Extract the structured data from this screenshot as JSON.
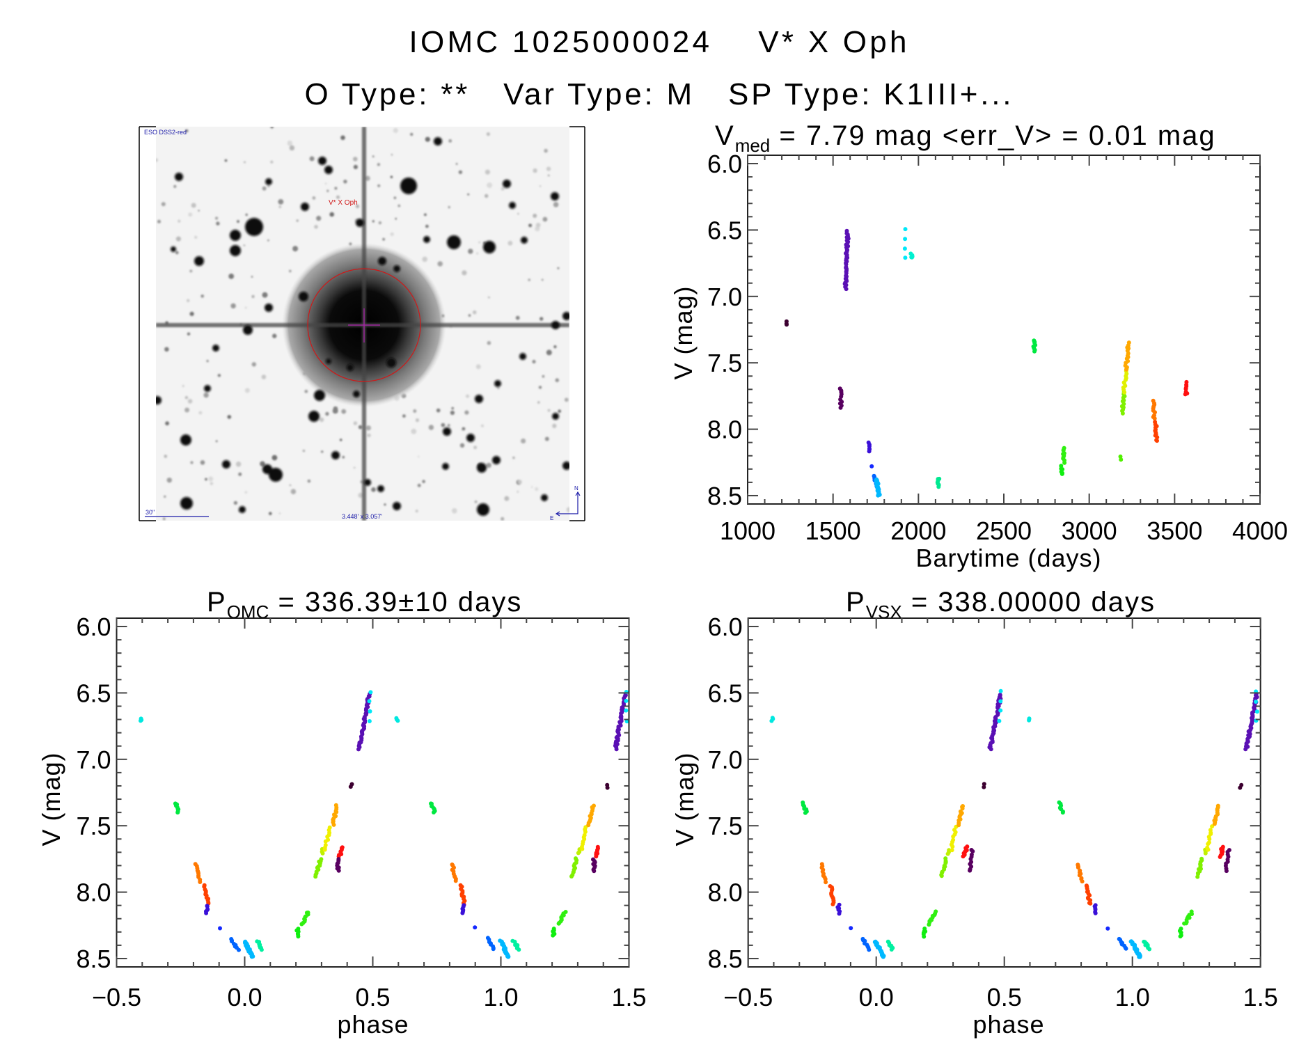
{
  "header": {
    "title_line1": "IOMC 1025000024    V* X Oph",
    "title_line2": "O Type: **   Var Type: M   SP Type: K1III+..."
  },
  "finder_image": {
    "survey_label": "ESO DSS2-red",
    "target_label": "V* X Oph",
    "scale_bar_label": "30\"",
    "field_size_label": "3.448' x 3.057'",
    "north_label": "N",
    "east_label": "E"
  },
  "chart_data": [
    {
      "type": "scatter",
      "title_main": "V",
      "title_sub": "med",
      "title_rest": " = 7.79 mag <err_V> = 0.01 mag",
      "xlabel": "Barytime (days)",
      "ylabel": "V (mag)",
      "xlim": [
        1000,
        4000
      ],
      "ylim": [
        5.937,
        8.563
      ],
      "y_inverted": true,
      "xticks": [
        "1000",
        "1500",
        "2000",
        "2500",
        "3000",
        "3500",
        "4000"
      ],
      "yticks": [
        "6.0",
        "6.5",
        "7.0",
        "7.5",
        "8.0",
        "8.5"
      ],
      "x_minor_step": 100,
      "y_minor_step": 0.1,
      "grid": false,
      "segments": [
        {
          "x": [
            1226,
            1226
          ],
          "mag": [
            7.19,
            7.21
          ],
          "color": "#3c0030",
          "n": 3
        },
        {
          "x": [
            1545,
            1547
          ],
          "mag": [
            7.69,
            7.84
          ],
          "color": "#580060",
          "n": 10
        },
        {
          "x": [
            1572,
            1586
          ],
          "mag": [
            6.94,
            6.51
          ],
          "color": "#5a10b4",
          "n": 40
        },
        {
          "x": [
            1924,
            1924
          ],
          "mag": [
            6.49,
            6.71
          ],
          "color": "#00e8f8",
          "n": 4
        },
        {
          "x": [
            1961,
            1961
          ],
          "mag": [
            6.68,
            6.71
          ],
          "color": "#00f0d0",
          "n": 5
        },
        {
          "x": [
            1711,
            1711
          ],
          "mag": [
            8.1,
            8.17
          ],
          "color": "#3a10d8",
          "n": 6
        },
        {
          "x": [
            1724,
            1724
          ],
          "mag": [
            8.28,
            8.28
          ],
          "color": "#1428ff",
          "n": 1
        },
        {
          "x": [
            1742,
            1756
          ],
          "mag": [
            8.35,
            8.43
          ],
          "color": "#0064ff",
          "n": 8
        },
        {
          "x": [
            1756,
            1769
          ],
          "mag": [
            8.38,
            8.5
          ],
          "color": "#00b8ff",
          "n": 30
        },
        {
          "x": [
            2116,
            2116
          ],
          "mag": [
            8.37,
            8.43
          ],
          "color": "#00e890",
          "n": 8
        },
        {
          "x": [
            2679,
            2679
          ],
          "mag": [
            7.33,
            7.41
          ],
          "color": "#00e840",
          "n": 8
        },
        {
          "x": [
            2839,
            2839
          ],
          "mag": [
            8.28,
            8.34
          ],
          "color": "#10ee10",
          "n": 6
        },
        {
          "x": [
            2851,
            2853
          ],
          "mag": [
            8.25,
            8.14
          ],
          "color": "#30f010",
          "n": 10
        },
        {
          "x": [
            3182,
            3182
          ],
          "mag": [
            8.21,
            8.23
          ],
          "color": "#50f000",
          "n": 2
        },
        {
          "x": [
            3195,
            3203
          ],
          "mag": [
            7.88,
            7.72
          ],
          "color": "#80f000",
          "n": 12
        },
        {
          "x": [
            3203,
            3215
          ],
          "mag": [
            7.72,
            7.55
          ],
          "color": "#e0f000",
          "n": 12
        },
        {
          "x": [
            3215,
            3231
          ],
          "mag": [
            7.55,
            7.35
          ],
          "color": "#ffa800",
          "n": 14
        },
        {
          "x": [
            3379,
            3381
          ],
          "mag": [
            7.79,
            7.92
          ],
          "color": "#ff7800",
          "n": 10
        },
        {
          "x": [
            3391,
            3393
          ],
          "mag": [
            7.95,
            8.09
          ],
          "color": "#ff4000",
          "n": 12
        },
        {
          "x": [
            3568,
            3569
          ],
          "mag": [
            7.74,
            7.65
          ],
          "color": "#ff1010",
          "n": 8
        }
      ]
    },
    {
      "type": "scatter",
      "title_main": "P",
      "title_sub": "OMC",
      "title_rest": " = 336.39±10 days",
      "xlabel": "phase",
      "ylabel": "V (mag)",
      "xlim": [
        -0.5,
        1.5
      ],
      "ylim": [
        5.937,
        8.563
      ],
      "y_inverted": true,
      "phase_repeat": true,
      "xticks": [
        "−0.5",
        "0.0",
        "0.5",
        "1.0",
        "1.5"
      ],
      "yticks": [
        "6.0",
        "6.5",
        "7.0",
        "7.5",
        "8.0",
        "8.5"
      ],
      "x_minor_step": 0.1,
      "y_minor_step": 0.1,
      "grid": false,
      "segments": [
        {
          "x": [
            -0.405,
            -0.405
          ],
          "mag": [
            6.69,
            6.71
          ],
          "color": "#00e8e0",
          "n": 3
        },
        {
          "x": [
            -0.27,
            -0.26
          ],
          "mag": [
            7.33,
            7.4
          ],
          "color": "#00e840",
          "n": 8
        },
        {
          "x": [
            -0.19,
            -0.177
          ],
          "mag": [
            7.79,
            7.92
          ],
          "color": "#ff7800",
          "n": 10
        },
        {
          "x": [
            -0.156,
            -0.142
          ],
          "mag": [
            7.95,
            8.09
          ],
          "color": "#ff4000",
          "n": 12
        },
        {
          "x": [
            -0.148,
            -0.148
          ],
          "mag": [
            8.1,
            8.16
          ],
          "color": "#3a10d8",
          "n": 6
        },
        {
          "x": [
            -0.1,
            -0.1
          ],
          "mag": [
            8.27,
            8.27
          ],
          "color": "#1428ff",
          "n": 1
        },
        {
          "x": [
            -0.054,
            -0.027
          ],
          "mag": [
            8.35,
            8.43
          ],
          "color": "#0064ff",
          "n": 8
        },
        {
          "x": [
            0.0,
            0.03
          ],
          "mag": [
            8.37,
            8.49
          ],
          "color": "#00b8ff",
          "n": 30
        },
        {
          "x": [
            0.05,
            0.07
          ],
          "mag": [
            8.37,
            8.43
          ],
          "color": "#00f0a0",
          "n": 8
        },
        {
          "x": [
            0.207,
            0.207
          ],
          "mag": [
            8.28,
            8.33
          ],
          "color": "#10ee10",
          "n": 6
        },
        {
          "x": [
            0.226,
            0.249
          ],
          "mag": [
            8.24,
            8.15
          ],
          "color": "#30f010",
          "n": 10
        },
        {
          "x": [
            0.278,
            0.296
          ],
          "mag": [
            7.88,
            7.75
          ],
          "color": "#80f000",
          "n": 12
        },
        {
          "x": [
            0.305,
            0.305
          ],
          "mag": [
            7.68,
            7.71
          ],
          "color": "#c0f000",
          "n": 3
        },
        {
          "x": [
            0.315,
            0.33
          ],
          "mag": [
            7.68,
            7.51
          ],
          "color": "#f0f000",
          "n": 10
        },
        {
          "x": [
            0.344,
            0.36
          ],
          "mag": [
            7.49,
            7.35
          ],
          "color": "#ffa800",
          "n": 12
        },
        {
          "x": [
            0.371,
            0.38
          ],
          "mag": [
            7.73,
            7.66
          ],
          "color": "#ff1010",
          "n": 8
        },
        {
          "x": [
            0.364,
            0.364
          ],
          "mag": [
            7.75,
            7.84
          ],
          "color": "#580060",
          "n": 8
        },
        {
          "x": [
            0.417,
            0.417
          ],
          "mag": [
            7.19,
            7.21
          ],
          "color": "#3c0030",
          "n": 2
        },
        {
          "x": [
            0.448,
            0.485
          ],
          "mag": [
            6.92,
            6.51
          ],
          "color": "#5a10b4",
          "n": 40
        },
        {
          "x": [
            0.489,
            0.489
          ],
          "mag": [
            6.49,
            6.71
          ],
          "color": "#00e8f8",
          "n": 4
        }
      ]
    },
    {
      "type": "scatter",
      "title_main": "P",
      "title_sub": "VSX",
      "title_rest": " = 338.00000 days",
      "xlabel": "phase",
      "ylabel": "V (mag)",
      "xlim": [
        -0.5,
        1.5
      ],
      "ylim": [
        5.937,
        8.563
      ],
      "y_inverted": true,
      "phase_repeat": true,
      "xticks": [
        "−0.5",
        "0.0",
        "0.5",
        "1.0",
        "1.5"
      ],
      "yticks": [
        "6.0",
        "6.5",
        "7.0",
        "7.5",
        "8.0",
        "8.5"
      ],
      "x_minor_step": 0.1,
      "y_minor_step": 0.1,
      "grid": false,
      "segments": [
        {
          "x": [
            -0.406,
            -0.406
          ],
          "mag": [
            6.69,
            6.71
          ],
          "color": "#00e8e0",
          "n": 3
        },
        {
          "x": [
            -0.283,
            -0.273
          ],
          "mag": [
            7.33,
            7.4
          ],
          "color": "#00e840",
          "n": 8
        },
        {
          "x": [
            -0.211,
            -0.2
          ],
          "mag": [
            7.79,
            7.92
          ],
          "color": "#ff7800",
          "n": 10
        },
        {
          "x": [
            -0.178,
            -0.166
          ],
          "mag": [
            7.95,
            8.09
          ],
          "color": "#ff4000",
          "n": 12
        },
        {
          "x": [
            -0.147,
            -0.147
          ],
          "mag": [
            8.1,
            8.16
          ],
          "color": "#3a10d8",
          "n": 6
        },
        {
          "x": [
            -0.099,
            -0.099
          ],
          "mag": [
            8.27,
            8.27
          ],
          "color": "#1428ff",
          "n": 1
        },
        {
          "x": [
            -0.054,
            -0.027
          ],
          "mag": [
            8.35,
            8.43
          ],
          "color": "#0064ff",
          "n": 8
        },
        {
          "x": [
            -0.004,
            0.03
          ],
          "mag": [
            8.37,
            8.49
          ],
          "color": "#00b8ff",
          "n": 30
        },
        {
          "x": [
            0.048,
            0.063
          ],
          "mag": [
            8.37,
            8.43
          ],
          "color": "#00f0a0",
          "n": 8
        },
        {
          "x": [
            0.188,
            0.188
          ],
          "mag": [
            8.28,
            8.33
          ],
          "color": "#10ee10",
          "n": 6
        },
        {
          "x": [
            0.204,
            0.231
          ],
          "mag": [
            8.24,
            8.15
          ],
          "color": "#30f010",
          "n": 10
        },
        {
          "x": [
            0.256,
            0.273
          ],
          "mag": [
            7.88,
            7.75
          ],
          "color": "#80f000",
          "n": 12
        },
        {
          "x": [
            0.282,
            0.282
          ],
          "mag": [
            7.68,
            7.71
          ],
          "color": "#c0f000",
          "n": 3
        },
        {
          "x": [
            0.292,
            0.31
          ],
          "mag": [
            7.68,
            7.51
          ],
          "color": "#f0f000",
          "n": 10
        },
        {
          "x": [
            0.32,
            0.338
          ],
          "mag": [
            7.49,
            7.35
          ],
          "color": "#ffa800",
          "n": 12
        },
        {
          "x": [
            0.343,
            0.353
          ],
          "mag": [
            7.73,
            7.66
          ],
          "color": "#ff1010",
          "n": 8
        },
        {
          "x": [
            0.365,
            0.375
          ],
          "mag": [
            7.84,
            7.68
          ],
          "color": "#580060",
          "n": 10
        },
        {
          "x": [
            0.422,
            0.422
          ],
          "mag": [
            7.19,
            7.21
          ],
          "color": "#3c0030",
          "n": 2
        },
        {
          "x": [
            0.445,
            0.486
          ],
          "mag": [
            6.92,
            6.51
          ],
          "color": "#5a10b4",
          "n": 40
        },
        {
          "x": [
            0.483,
            0.483
          ],
          "mag": [
            6.49,
            6.71
          ],
          "color": "#00e8f8",
          "n": 4
        }
      ]
    }
  ]
}
